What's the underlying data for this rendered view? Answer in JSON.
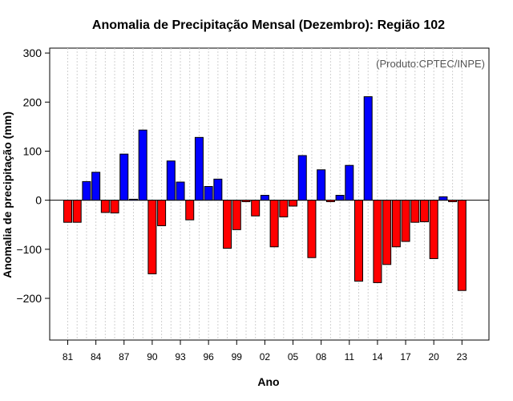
{
  "chart_data": {
    "type": "bar",
    "title": "Anomalia de Precipitação Mensal (Dezembro): Região 102",
    "xlabel": "Ano",
    "ylabel": "Anomalia de precipitação (mm)",
    "source_note": "(Produto:CPTEC/INPE)",
    "ylim": [
      -285,
      310
    ],
    "yticks": [
      -200,
      -100,
      0,
      100,
      200,
      300
    ],
    "ytick_labels": [
      "−200",
      "−100",
      "0",
      "100",
      "200",
      "300"
    ],
    "xtick_labels": [
      "81",
      "84",
      "87",
      "90",
      "93",
      "96",
      "99",
      "02",
      "05",
      "08",
      "11",
      "14",
      "17",
      "20",
      "23"
    ],
    "positive_color": "#0000ff",
    "negative_color": "#ff0000",
    "years": [
      1981,
      1982,
      1983,
      1984,
      1985,
      1986,
      1987,
      1988,
      1989,
      1990,
      1991,
      1992,
      1993,
      1994,
      1995,
      1996,
      1997,
      1998,
      1999,
      2000,
      2001,
      2002,
      2003,
      2004,
      2005,
      2006,
      2007,
      2008,
      2009,
      2010,
      2011,
      2012,
      2013,
      2014,
      2015,
      2016,
      2017,
      2018,
      2019,
      2020,
      2021,
      2022,
      2023
    ],
    "values": [
      -45,
      -45,
      38,
      57,
      -25,
      -26,
      94,
      2,
      143,
      -150,
      -52,
      80,
      37,
      -40,
      128,
      28,
      43,
      -98,
      -60,
      -3,
      -32,
      10,
      -95,
      -34,
      -12,
      91,
      -117,
      62,
      -3,
      10,
      71,
      -165,
      211,
      -168,
      -131,
      -95,
      -84,
      -45,
      -44,
      -119,
      7,
      -3,
      -184
    ]
  }
}
